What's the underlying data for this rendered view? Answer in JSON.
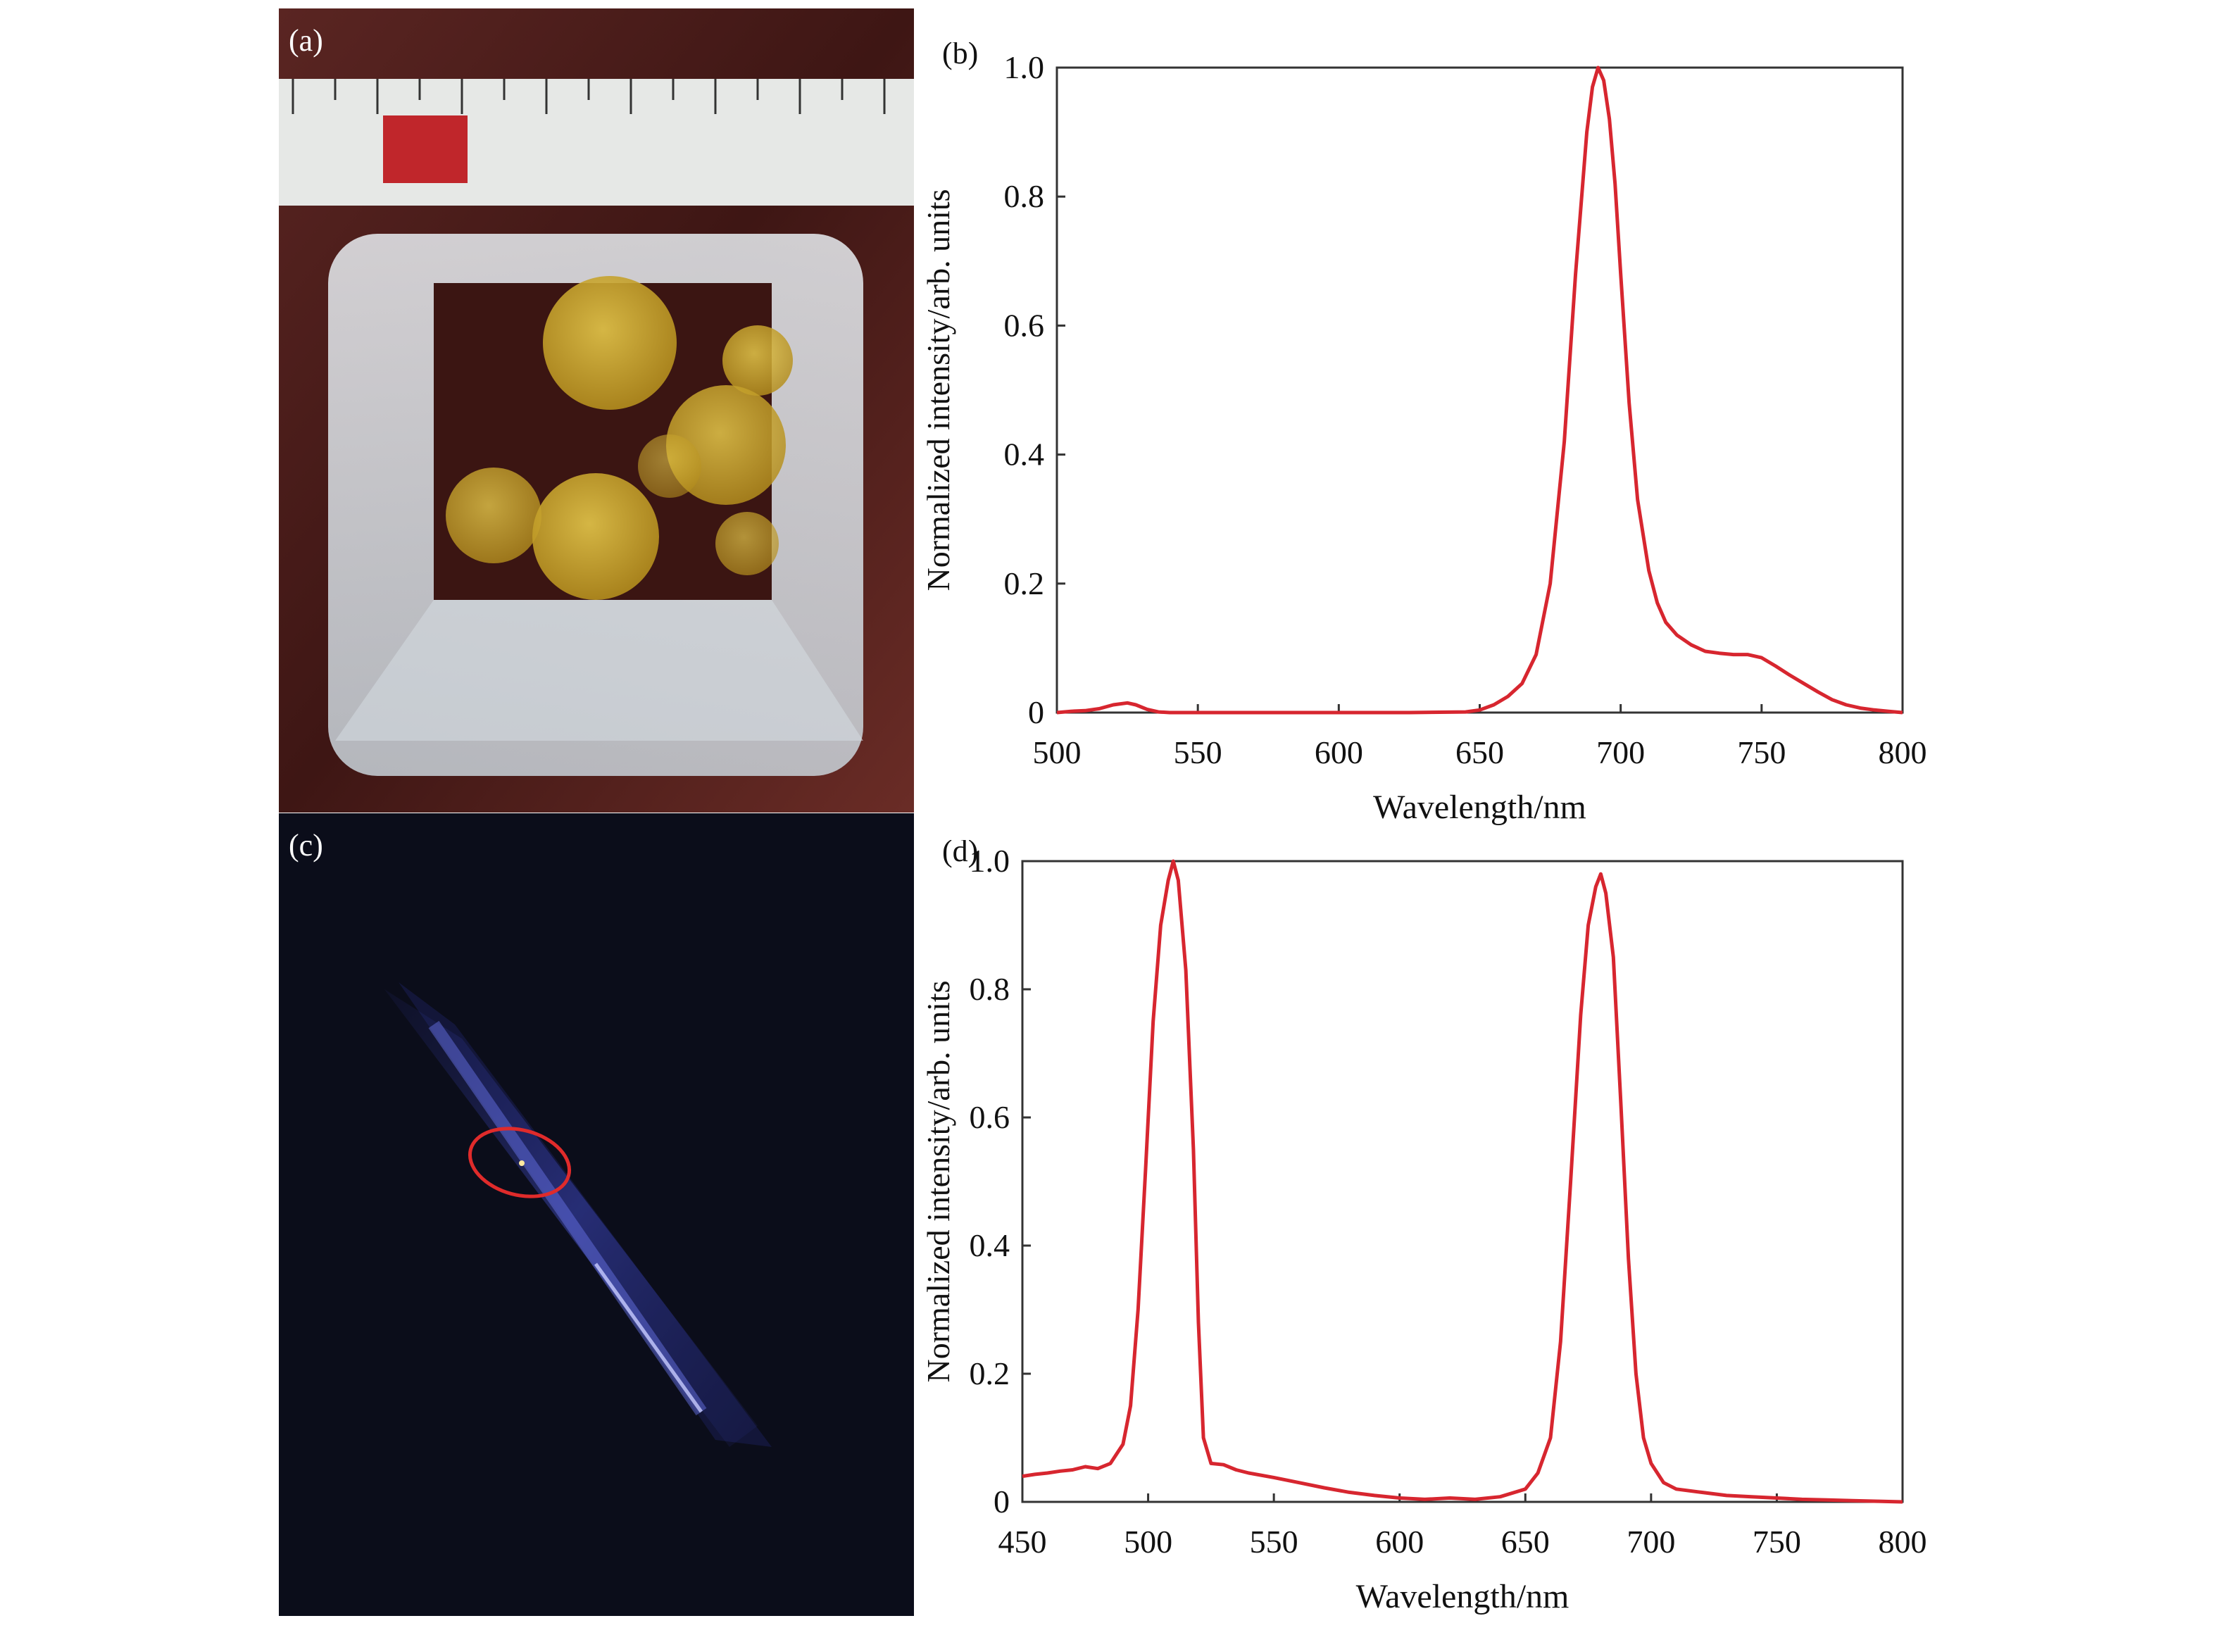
{
  "panels": {
    "a": {
      "label": "(a)"
    },
    "b": {
      "label": "(b)"
    },
    "c": {
      "label": "(c)"
    },
    "d": {
      "label": "(d)"
    }
  },
  "colors": {
    "line": "#d7262f",
    "axis": "#333333",
    "photo_a_bg": "#4a1f1c",
    "photo_c_bg": "#0b0d1a",
    "ellipse": "#e02b2b"
  },
  "chart_data": [
    {
      "id": "b",
      "type": "line",
      "xlabel": "Wavelength/nm",
      "ylabel": "Normalized intensity/arb. units",
      "xlim": [
        500,
        800
      ],
      "ylim": [
        0,
        1.0
      ],
      "xticks": [
        500,
        550,
        600,
        650,
        700,
        750,
        800
      ],
      "yticks": [
        0,
        0.2,
        0.4,
        0.6,
        0.8,
        1.0
      ],
      "ytick_labels": [
        "0",
        "0.2",
        "0.4",
        "0.6",
        "0.8",
        "1.0"
      ],
      "series": [
        {
          "x": [
            500,
            505,
            510,
            515,
            520,
            525,
            528,
            532,
            536,
            540,
            550,
            575,
            600,
            625,
            645,
            650,
            655,
            660,
            665,
            670,
            675,
            680,
            684,
            688,
            690,
            692,
            694,
            696,
            698,
            700,
            703,
            706,
            710,
            713,
            716,
            720,
            725,
            730,
            735,
            740,
            745,
            750,
            755,
            760,
            765,
            770,
            775,
            780,
            785,
            790,
            795,
            800
          ],
          "y": [
            0.0,
            0.002,
            0.003,
            0.006,
            0.012,
            0.015,
            0.012,
            0.005,
            0.001,
            0.0,
            0.0,
            0.0,
            0.0,
            0.0,
            0.001,
            0.004,
            0.012,
            0.025,
            0.045,
            0.09,
            0.2,
            0.42,
            0.68,
            0.9,
            0.97,
            1.0,
            0.98,
            0.92,
            0.82,
            0.68,
            0.48,
            0.33,
            0.22,
            0.17,
            0.14,
            0.12,
            0.105,
            0.095,
            0.092,
            0.09,
            0.09,
            0.085,
            0.072,
            0.058,
            0.045,
            0.032,
            0.02,
            0.012,
            0.007,
            0.004,
            0.002,
            0.0
          ]
        }
      ]
    },
    {
      "id": "d",
      "type": "line",
      "xlabel": "Wavelength/nm",
      "ylabel": "Normalized intensity/arb. units",
      "xlim": [
        450,
        800
      ],
      "ylim": [
        0,
        1.0
      ],
      "xticks": [
        450,
        500,
        550,
        600,
        650,
        700,
        750,
        800
      ],
      "yticks": [
        0,
        0.2,
        0.4,
        0.6,
        0.8,
        1.0
      ],
      "ytick_labels": [
        "0",
        "0.2",
        "0.4",
        "0.6",
        "0.8",
        "1.0"
      ],
      "series": [
        {
          "x": [
            450,
            455,
            460,
            465,
            470,
            475,
            480,
            485,
            490,
            493,
            496,
            499,
            502,
            505,
            508,
            510,
            512,
            515,
            518,
            520,
            522,
            525,
            530,
            535,
            540,
            550,
            560,
            570,
            580,
            590,
            600,
            610,
            620,
            630,
            640,
            650,
            655,
            660,
            664,
            668,
            672,
            675,
            678,
            680,
            682,
            685,
            688,
            691,
            694,
            697,
            700,
            705,
            710,
            720,
            730,
            740,
            750,
            760,
            770,
            780,
            790,
            800
          ],
          "y": [
            0.04,
            0.043,
            0.045,
            0.048,
            0.05,
            0.055,
            0.052,
            0.06,
            0.09,
            0.15,
            0.3,
            0.52,
            0.75,
            0.9,
            0.97,
            1.0,
            0.97,
            0.83,
            0.55,
            0.28,
            0.1,
            0.06,
            0.058,
            0.05,
            0.045,
            0.038,
            0.03,
            0.022,
            0.015,
            0.01,
            0.006,
            0.004,
            0.006,
            0.004,
            0.008,
            0.02,
            0.045,
            0.1,
            0.25,
            0.5,
            0.76,
            0.9,
            0.96,
            0.98,
            0.95,
            0.85,
            0.62,
            0.38,
            0.2,
            0.1,
            0.06,
            0.03,
            0.02,
            0.015,
            0.01,
            0.008,
            0.006,
            0.004,
            0.003,
            0.002,
            0.001,
            0.0
          ]
        }
      ]
    }
  ]
}
